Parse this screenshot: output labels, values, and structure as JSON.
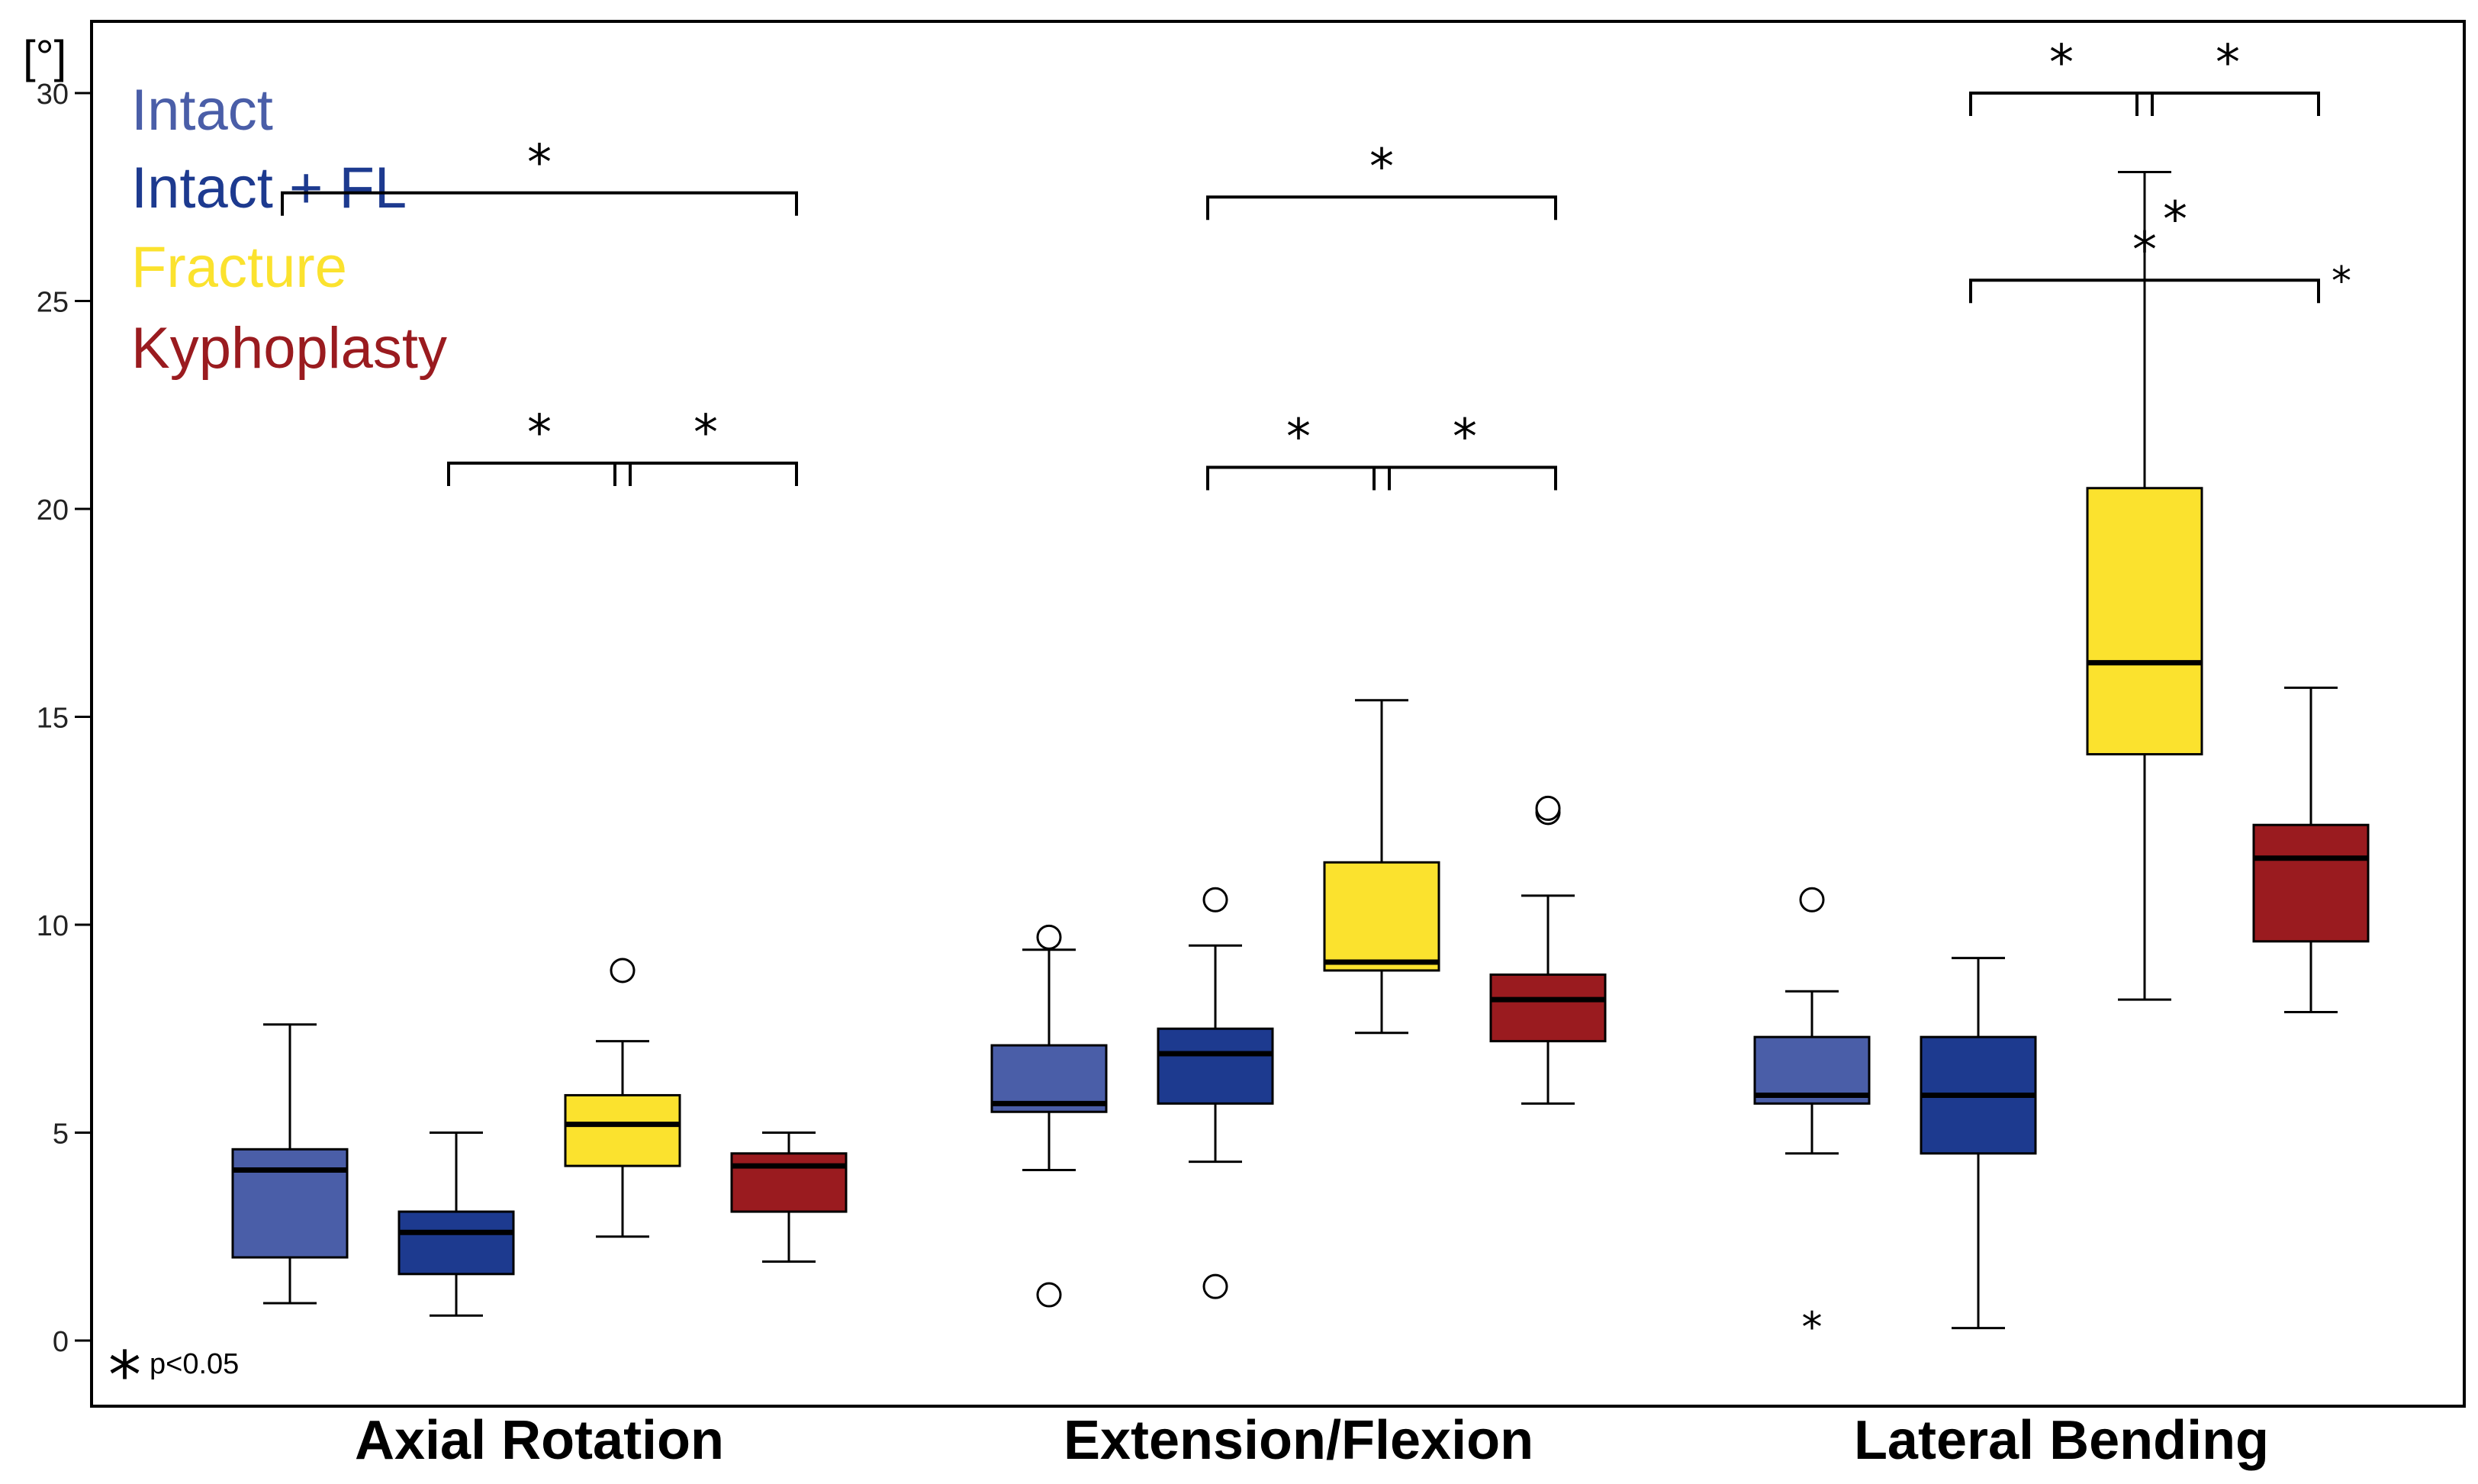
{
  "chart_data": {
    "type": "boxplot",
    "y_unit_label": "[°]",
    "ylim": [
      -1.5,
      31.8
    ],
    "yticks": [
      0,
      5,
      10,
      15,
      20,
      25,
      30
    ],
    "categories": [
      "Axial Rotation",
      "Extension/Flexion",
      "Lateral Bending"
    ],
    "significance_note": "p<0.05",
    "significance_symbol": "*",
    "series": [
      {
        "name": "Intact",
        "color": "#4a5ea8",
        "boxes": [
          {
            "min": 0.9,
            "q1": 2.0,
            "median": 4.1,
            "q3": 4.6,
            "max": 7.6,
            "outliers": [],
            "extremes": []
          },
          {
            "min": 4.1,
            "q1": 5.5,
            "median": 5.7,
            "q3": 7.1,
            "max": 9.4,
            "outliers": [
              9.7,
              1.1
            ],
            "extremes": []
          },
          {
            "min": 4.5,
            "q1": 5.7,
            "median": 5.9,
            "q3": 7.3,
            "max": 8.4,
            "outliers": [
              10.6
            ],
            "extremes": [
              0.5
            ]
          }
        ]
      },
      {
        "name": "Intact + FL",
        "color": "#1d3a8f",
        "boxes": [
          {
            "min": 0.6,
            "q1": 1.6,
            "median": 2.6,
            "q3": 3.1,
            "max": 5.0,
            "outliers": [],
            "extremes": []
          },
          {
            "min": 4.3,
            "q1": 5.7,
            "median": 6.9,
            "q3": 7.5,
            "max": 9.5,
            "outliers": [
              10.6,
              1.3
            ],
            "extremes": []
          },
          {
            "min": 0.3,
            "q1": 4.5,
            "median": 5.9,
            "q3": 7.3,
            "max": 9.2,
            "outliers": [],
            "extremes": []
          }
        ]
      },
      {
        "name": "Fracture",
        "color": "#fbe22e",
        "boxes": [
          {
            "min": 2.5,
            "q1": 4.2,
            "median": 5.2,
            "q3": 5.9,
            "max": 7.2,
            "outliers": [
              8.9
            ],
            "extremes": []
          },
          {
            "min": 7.4,
            "q1": 8.9,
            "median": 9.1,
            "q3": 11.5,
            "max": 15.4,
            "outliers": [],
            "extremes": []
          },
          {
            "min": 8.2,
            "q1": 14.1,
            "median": 16.3,
            "q3": 20.5,
            "max": 28.1,
            "outliers": [],
            "extremes": []
          }
        ]
      },
      {
        "name": "Kyphoplasty",
        "color": "#9a1b1f",
        "boxes": [
          {
            "min": 1.9,
            "q1": 3.1,
            "median": 4.2,
            "q3": 4.5,
            "max": 5.0,
            "outliers": [],
            "extremes": []
          },
          {
            "min": 5.7,
            "q1": 7.2,
            "median": 8.2,
            "q3": 8.8,
            "max": 10.7,
            "outliers": [
              12.7,
              12.8
            ],
            "extremes": []
          },
          {
            "min": 7.9,
            "q1": 9.6,
            "median": 11.6,
            "q3": 12.4,
            "max": 15.7,
            "outliers": [],
            "extremes": []
          }
        ]
      }
    ],
    "significance_brackets": [
      {
        "category": 0,
        "from": 0,
        "to": 3,
        "y": 27.6,
        "label": "*"
      },
      {
        "category": 0,
        "from": 1,
        "to": 2,
        "y": 21.1,
        "label": "*"
      },
      {
        "category": 0,
        "from": 2,
        "to": 3,
        "y": 21.1,
        "label": "*"
      },
      {
        "category": 1,
        "from": 1,
        "to": 3,
        "y": 27.5,
        "label": "*"
      },
      {
        "category": 1,
        "from": 1,
        "to": 2,
        "y": 21.0,
        "label": "*"
      },
      {
        "category": 1,
        "from": 2,
        "to": 3,
        "y": 21.0,
        "label": "*"
      },
      {
        "category": 2,
        "from": 1,
        "to": 2,
        "y": 30.0,
        "label": "*"
      },
      {
        "category": 2,
        "from": 2,
        "to": 3,
        "y": 30.0,
        "label": "*"
      },
      {
        "category": 2,
        "from": 1,
        "to": 3,
        "y": 25.5,
        "label": "*"
      }
    ],
    "extra_annotations": [
      {
        "category": 2,
        "series": 2,
        "y": 27.0,
        "label": "*"
      },
      {
        "category": 2,
        "series": 3,
        "y": 25.6,
        "label": "*"
      }
    ]
  }
}
